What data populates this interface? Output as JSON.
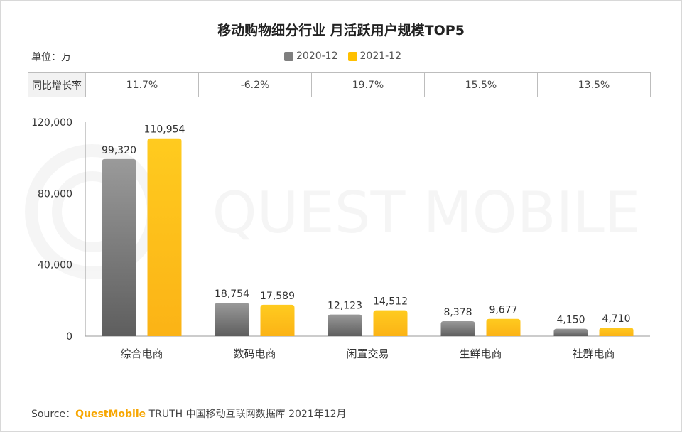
{
  "title": "移动购物细分行业 月活跃用户规模TOP5",
  "unit": "单位：万",
  "yoy_row": {
    "label": "同比增长率",
    "values": [
      "11.7%",
      "-6.2%",
      "19.7%",
      "15.5%",
      "13.5%"
    ]
  },
  "watermark": "QUEST MOBILE",
  "source": {
    "prefix": "Source：",
    "brand": "QuestMobile",
    "rest": " TRUTH 中国移动互联网数据库 2021年12月"
  },
  "colors": {
    "series_2020": "#808080",
    "series_2021": "#ffc000",
    "brand": "#f7a600"
  },
  "chart_data": {
    "type": "bar",
    "categories": [
      "综合电商",
      "数码电商",
      "闲置交易",
      "生鲜电商",
      "社群电商"
    ],
    "series": [
      {
        "name": "2020-12",
        "values": [
          99320,
          18754,
          12123,
          8378,
          4150
        ],
        "labels": [
          "99,320",
          "18,754",
          "12,123",
          "8,378",
          "4,150"
        ]
      },
      {
        "name": "2021-12",
        "values": [
          110954,
          17589,
          14512,
          9677,
          4710
        ],
        "labels": [
          "110,954",
          "17,589",
          "14,512",
          "9,677",
          "4,710"
        ]
      }
    ],
    "ylim": [
      0,
      120000
    ],
    "yticks": [
      0,
      40000,
      80000,
      120000
    ],
    "ytick_labels": [
      "0",
      "40,000",
      "80,000",
      "120,000"
    ],
    "legend_position": "top-center",
    "grid": false
  }
}
